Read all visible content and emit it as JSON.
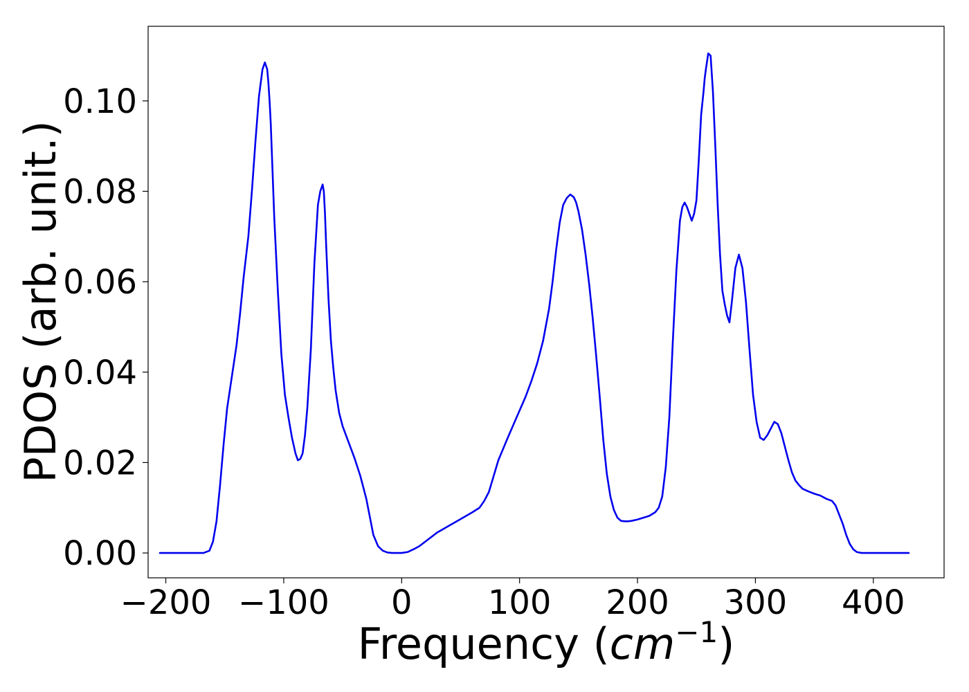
{
  "chart_data": {
    "type": "line",
    "title": "",
    "xlabel_prefix": "Frequency (",
    "xlabel_italic": "cm",
    "xlabel_superscript": "−1",
    "xlabel_suffix": ")",
    "ylabel": "PDOS (arb. unit.)",
    "xlim": [
      -215,
      460
    ],
    "ylim": [
      -0.0055,
      0.1165
    ],
    "xticks": [
      {
        "value": -200,
        "label": "−200"
      },
      {
        "value": -100,
        "label": "−100"
      },
      {
        "value": 0,
        "label": "0"
      },
      {
        "value": 100,
        "label": "100"
      },
      {
        "value": 200,
        "label": "200"
      },
      {
        "value": 300,
        "label": "300"
      },
      {
        "value": 400,
        "label": "400"
      }
    ],
    "yticks": [
      {
        "value": 0.0,
        "label": "0.00"
      },
      {
        "value": 0.02,
        "label": "0.02"
      },
      {
        "value": 0.04,
        "label": "0.04"
      },
      {
        "value": 0.06,
        "label": "0.06"
      },
      {
        "value": 0.08,
        "label": "0.08"
      },
      {
        "value": 0.1,
        "label": "0.10"
      }
    ],
    "grid": false,
    "legend": "none",
    "series": [
      {
        "color": "#0000ee",
        "x": [
          -205,
          -190,
          -175,
          -168,
          -163,
          -160,
          -157,
          -154,
          -151,
          -148,
          -144,
          -140,
          -137,
          -134,
          -130,
          -127,
          -124,
          -121,
          -118,
          -116,
          -114,
          -113,
          -112,
          -111,
          -110,
          -108,
          -105,
          -102,
          -99,
          -96,
          -93,
          -90,
          -88,
          -86,
          -84,
          -82,
          -80,
          -77,
          -74,
          -71,
          -69,
          -67,
          -66,
          -65,
          -64,
          -62,
          -60,
          -58,
          -56,
          -53,
          -50,
          -45,
          -40,
          -35,
          -30,
          -27,
          -24,
          -20,
          -16,
          -12,
          -8,
          -4,
          0,
          5,
          10,
          15,
          20,
          30,
          40,
          50,
          60,
          66,
          70,
          74,
          78,
          82,
          86,
          90,
          95,
          100,
          105,
          110,
          115,
          120,
          125,
          128,
          131,
          134,
          137,
          140,
          143,
          146,
          148,
          150,
          153,
          156,
          159,
          162,
          165,
          168,
          171,
          174,
          177,
          180,
          183,
          186,
          189,
          192,
          195,
          200,
          205,
          210,
          215,
          218,
          221,
          224,
          227,
          230,
          233,
          236,
          238,
          240,
          242,
          244,
          246,
          248,
          250,
          252,
          254,
          256,
          257,
          258,
          260,
          262,
          264,
          266,
          268,
          270,
          272,
          274,
          276,
          278,
          280,
          283,
          286,
          289,
          292,
          295,
          298,
          301,
          304,
          307,
          310,
          313,
          316,
          319,
          322,
          325,
          328,
          331,
          334,
          337,
          340,
          345,
          350,
          355,
          360,
          365,
          368,
          371,
          374,
          377,
          380,
          383,
          386,
          390,
          400,
          410,
          420,
          430
        ],
        "y": [
          0.0,
          0.0,
          0.0,
          0.0,
          0.0005,
          0.0025,
          0.007,
          0.015,
          0.024,
          0.032,
          0.039,
          0.046,
          0.053,
          0.061,
          0.07,
          0.08,
          0.091,
          0.101,
          0.107,
          0.1085,
          0.107,
          0.104,
          0.1,
          0.095,
          0.088,
          0.074,
          0.058,
          0.044,
          0.035,
          0.03,
          0.0255,
          0.022,
          0.0205,
          0.0208,
          0.022,
          0.026,
          0.032,
          0.045,
          0.064,
          0.077,
          0.08,
          0.0815,
          0.08,
          0.075,
          0.068,
          0.056,
          0.047,
          0.041,
          0.036,
          0.031,
          0.028,
          0.0245,
          0.021,
          0.017,
          0.012,
          0.008,
          0.004,
          0.0015,
          0.0005,
          0.0001,
          0.0,
          0.0,
          0.0,
          0.0002,
          0.0008,
          0.0015,
          0.0025,
          0.0045,
          0.006,
          0.0075,
          0.009,
          0.01,
          0.0115,
          0.0135,
          0.017,
          0.0205,
          0.023,
          0.0255,
          0.0285,
          0.0315,
          0.0345,
          0.038,
          0.042,
          0.047,
          0.054,
          0.06,
          0.067,
          0.073,
          0.077,
          0.0785,
          0.0793,
          0.0787,
          0.0775,
          0.0755,
          0.0715,
          0.066,
          0.0595,
          0.052,
          0.0435,
          0.0345,
          0.025,
          0.0175,
          0.0125,
          0.0095,
          0.0078,
          0.0071,
          0.007,
          0.007,
          0.0071,
          0.0074,
          0.0078,
          0.0082,
          0.009,
          0.01,
          0.0125,
          0.019,
          0.03,
          0.047,
          0.0625,
          0.0735,
          0.0765,
          0.0775,
          0.0765,
          0.075,
          0.0735,
          0.075,
          0.078,
          0.087,
          0.097,
          0.102,
          0.105,
          0.107,
          0.1105,
          0.11,
          0.102,
          0.09,
          0.077,
          0.066,
          0.058,
          0.055,
          0.0525,
          0.051,
          0.0555,
          0.063,
          0.066,
          0.063,
          0.0555,
          0.045,
          0.035,
          0.029,
          0.0255,
          0.025,
          0.026,
          0.0275,
          0.029,
          0.0285,
          0.0265,
          0.0235,
          0.0205,
          0.0178,
          0.016,
          0.015,
          0.0142,
          0.0136,
          0.0131,
          0.0127,
          0.012,
          0.0115,
          0.0105,
          0.0085,
          0.0065,
          0.004,
          0.002,
          0.0008,
          0.0002,
          0.0,
          0.0,
          0.0,
          0.0,
          0.0
        ]
      }
    ]
  }
}
